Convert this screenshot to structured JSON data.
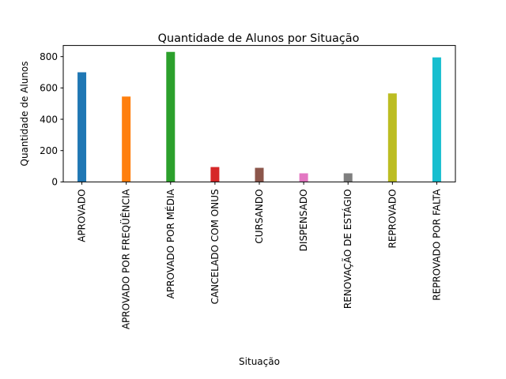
{
  "chart_data": {
    "type": "bar",
    "title": "Quantidade de Alunos por Situação",
    "xlabel": "Situação",
    "ylabel": "Quantidade de Alunos",
    "categories": [
      "APROVADO",
      "APROVADO POR FREQÜÊNCIA",
      "APROVADO POR MÉDIA",
      "CANCELADO COM ONUS",
      "CURSANDO",
      "DISPENSADO",
      "RENOVAÇÃO DE ESTÁGIO",
      "REPROVADO",
      "REPROVADO POR FALTA"
    ],
    "values": [
      700,
      545,
      830,
      95,
      90,
      55,
      55,
      565,
      795
    ],
    "colors": [
      "#1f77b4",
      "#ff7f0e",
      "#2ca02c",
      "#d62728",
      "#8c564b",
      "#e377c2",
      "#7f7f7f",
      "#bcbd22",
      "#17becf"
    ],
    "ylim": [
      0,
      871
    ],
    "yticks": [
      0,
      200,
      400,
      600,
      800
    ],
    "grid": false,
    "legend": "none"
  }
}
